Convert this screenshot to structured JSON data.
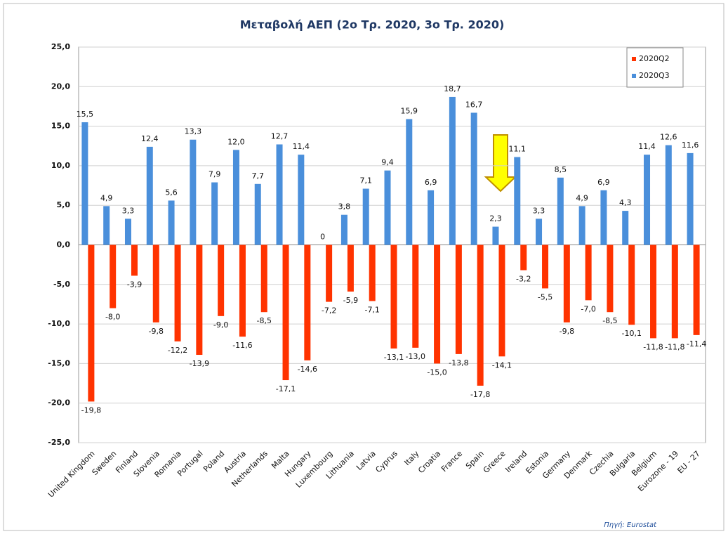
{
  "chart_data": {
    "type": "bar",
    "title": "Μεταβολή ΑΕΠ (2ο Τρ. 2020, 3ο Τρ. 2020)",
    "categories": [
      "United Kingdom",
      "Sweden",
      "Finland",
      "Slovenia",
      "Romania",
      "Portugal",
      "Poland",
      "Austria",
      "Netherlands",
      "Malta",
      "Hungary",
      "Luxembourg",
      "Lithuania",
      "Latvia",
      "Cyprus",
      "Italy",
      "Croatia",
      "France",
      "Spain",
      "Greece",
      "Ireland",
      "Estonia",
      "Germany",
      "Denmark",
      "Czechia",
      "Bulgaria",
      "Belgium",
      "Eurozone - 19",
      "EU - 27"
    ],
    "series": [
      {
        "name": "2020Q2",
        "color": "#ff3300",
        "values": [
          -19.8,
          -8.0,
          -3.9,
          -9.8,
          -12.2,
          -13.9,
          -9.0,
          -11.6,
          -8.5,
          -17.1,
          -14.6,
          -7.2,
          -5.9,
          -7.1,
          -13.1,
          -13.0,
          -15.0,
          -13.8,
          -17.8,
          -14.1,
          -3.2,
          -5.5,
          -9.8,
          -7.0,
          -8.5,
          -10.1,
          -11.8,
          -11.8,
          -11.4
        ],
        "value_labels": [
          "-19,8",
          "-8,0",
          "-3,9",
          "-9,8",
          "-12,2",
          "-13,9",
          "-9,0",
          "-11,6",
          "-8,5",
          "-17,1",
          "-14,6",
          "-7,2",
          "-5,9",
          "-7,1",
          "-13,1",
          "-13,0",
          "-15,0",
          "-13,8",
          "-17,8",
          "-14,1",
          "-3,2",
          "-5,5",
          "-9,8",
          "-7,0",
          "-8,5",
          "-10,1",
          "-11,8",
          "-11,8",
          "-11,4"
        ]
      },
      {
        "name": "2020Q3",
        "color": "#4a8fdb",
        "values": [
          15.5,
          4.9,
          3.3,
          12.4,
          5.6,
          13.3,
          7.9,
          12.0,
          7.7,
          12.7,
          11.4,
          0,
          3.8,
          7.1,
          9.4,
          15.9,
          6.9,
          18.7,
          16.7,
          2.3,
          11.1,
          3.3,
          8.5,
          4.9,
          6.9,
          4.3,
          11.4,
          12.6,
          11.6
        ],
        "value_labels": [
          "15,5",
          "4,9",
          "3,3",
          "12,4",
          "5,6",
          "13,3",
          "7,9",
          "12,0",
          "7,7",
          "12,7",
          "11,4",
          "0",
          "3,8",
          "7,1",
          "9,4",
          "15,9",
          "6,9",
          "18,7",
          "16,7",
          "2,3",
          "11,1",
          "3,3",
          "8,5",
          "4,9",
          "6,9",
          "4,3",
          "11,4",
          "12,6",
          "11,6"
        ]
      }
    ],
    "ylim": [
      -25,
      25
    ],
    "yticks": [
      {
        "value": -25,
        "label": "-25,0"
      },
      {
        "value": -20,
        "label": "-20,0"
      },
      {
        "value": -15,
        "label": "-15,0"
      },
      {
        "value": -10,
        "label": "-10,0"
      },
      {
        "value": -5,
        "label": "-5,0"
      },
      {
        "value": 0,
        "label": "0,0"
      },
      {
        "value": 5,
        "label": "5,0"
      },
      {
        "value": 10,
        "label": "10,0"
      },
      {
        "value": 15,
        "label": "15,0"
      },
      {
        "value": 20,
        "label": "20,0"
      },
      {
        "value": 25,
        "label": "25,0"
      }
    ],
    "grid": true,
    "legend": "upper right",
    "source": "Πηγή: Eurostat"
  }
}
